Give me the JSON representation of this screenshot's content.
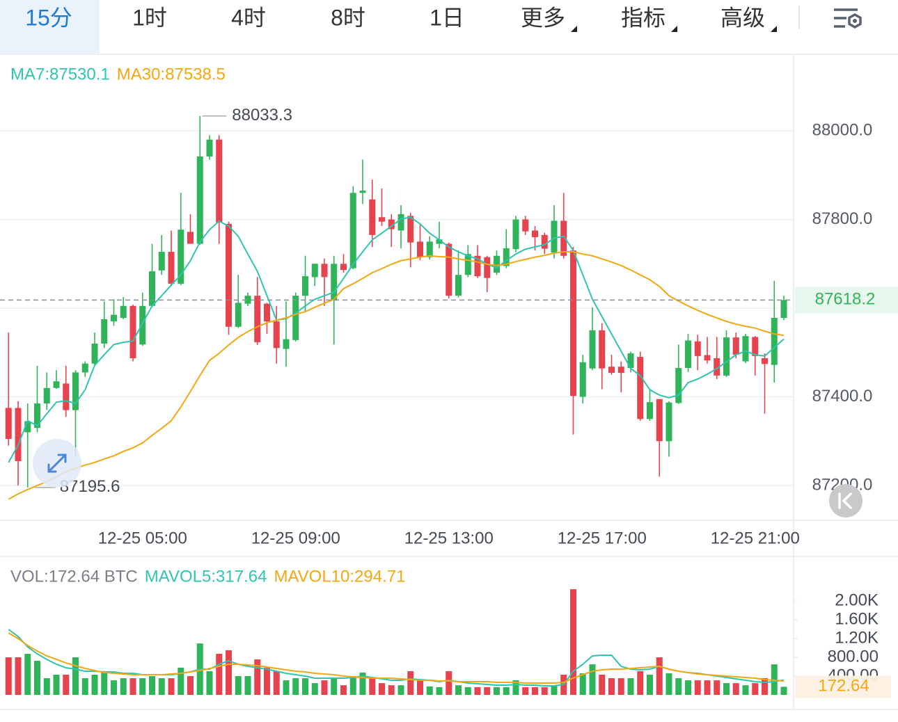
{
  "header": {
    "tabs": [
      "15分",
      "1时",
      "4时",
      "8时",
      "1日",
      "更多",
      "指标",
      "高级"
    ],
    "active": 0
  },
  "chart_data": [
    {
      "type": "candlestick",
      "categories": [
        null,
        null,
        null,
        null,
        null,
        null,
        null,
        null,
        null,
        null,
        null,
        null,
        null,
        null,
        "12-25 05:00",
        null,
        null,
        null,
        null,
        null,
        null,
        null,
        null,
        null,
        null,
        null,
        null,
        null,
        null,
        null,
        "12-25 09:00",
        null,
        null,
        null,
        null,
        null,
        null,
        null,
        null,
        null,
        null,
        null,
        null,
        null,
        null,
        null,
        "12-25 13:00",
        null,
        null,
        null,
        null,
        null,
        null,
        null,
        null,
        null,
        null,
        null,
        null,
        null,
        null,
        null,
        "12-25 17:00",
        null,
        null,
        null,
        null,
        null,
        null,
        null,
        null,
        null,
        null,
        null,
        null,
        null,
        null,
        null,
        "12-25 21:00",
        null,
        null,
        null
      ],
      "open": [
        87375,
        87375,
        87320,
        87330,
        87385,
        87420,
        87430,
        87370,
        87455,
        87475,
        87520,
        87570,
        87578,
        87605,
        87518,
        87605,
        87685,
        87727,
        87655,
        87772,
        87745,
        87942,
        87980,
        87790,
        87558,
        87610,
        87628,
        87610,
        87570,
        87508,
        87528,
        87628,
        87670,
        87700,
        87618,
        87700,
        87690,
        87860,
        87845,
        87805,
        87800,
        87775,
        87808,
        87750,
        87715,
        87745,
        87745,
        87628,
        87675,
        87718,
        87715,
        87680,
        87695,
        87733,
        87800,
        87775,
        87765,
        87725,
        87797,
        87730,
        87400,
        87464,
        87550,
        87468,
        87468,
        87465,
        87490,
        87350,
        87395,
        87300,
        87386,
        87465,
        87525,
        87494,
        87487,
        87448,
        87534,
        87480,
        87535,
        87487,
        87472,
        87578
      ],
      "high": [
        87545,
        87390,
        87385,
        87470,
        87455,
        87460,
        87470,
        87460,
        87480,
        87545,
        87615,
        87620,
        87625,
        87608,
        87635,
        87745,
        87765,
        87775,
        87860,
        87812,
        88033.3,
        87990,
        87990,
        87795,
        87675,
        87635,
        87670,
        87612,
        87605,
        87615,
        87635,
        87718,
        87700,
        87712,
        87718,
        87722,
        87875,
        87935,
        87890,
        87870,
        87812,
        87832,
        87815,
        87790,
        87762,
        87795,
        87748,
        87730,
        87742,
        87742,
        87718,
        87730,
        87778,
        87808,
        87808,
        87785,
        87770,
        87832,
        87860,
        87738,
        87495,
        87602,
        87566,
        87495,
        87480,
        87502,
        87502,
        87418,
        87395,
        87390,
        87518,
        87542,
        87540,
        87535,
        87535,
        87550,
        87545,
        87542,
        87537,
        87498,
        87662,
        87628
      ],
      "low": [
        87290,
        87200,
        87195.6,
        87320,
        87370,
        87418,
        87355,
        87265,
        87445,
        87470,
        87510,
        87560,
        87575,
        87480,
        87515,
        87602,
        87675,
        87650,
        87652,
        87745,
        87743,
        87935,
        87745,
        87540,
        87555,
        87605,
        87517,
        87542,
        87475,
        87468,
        87525,
        87590,
        87650,
        87605,
        87518,
        87680,
        87688,
        87835,
        87738,
        87785,
        87738,
        87735,
        87692,
        87708,
        87710,
        87735,
        87622,
        87624,
        87670,
        87668,
        87636,
        87675,
        87690,
        87726,
        87765,
        87730,
        87722,
        87712,
        87712,
        87315,
        87385,
        87460,
        87417,
        87450,
        87410,
        87455,
        87346,
        87346,
        87220,
        87265,
        87384,
        87456,
        87460,
        87475,
        87440,
        87445,
        87487,
        87476,
        87448,
        87362,
        87432,
        87573
      ],
      "close": [
        87305,
        87255,
        87345,
        87385,
        87420,
        87435,
        87370,
        87455,
        87475,
        87520,
        87575,
        87585,
        87605,
        87487,
        87605,
        87683,
        87727,
        87655,
        87777,
        87745,
        87942,
        87980,
        87793,
        87558,
        87612,
        87628,
        87523,
        87570,
        87510,
        87530,
        87628,
        87672,
        87700,
        87670,
        87700,
        87686,
        87860,
        87865,
        87765,
        87795,
        87778,
        87812,
        87748,
        87715,
        87750,
        87755,
        87628,
        87675,
        87722,
        87672,
        87668,
        87718,
        87735,
        87800,
        87773,
        87760,
        87734,
        87797,
        87718,
        87402,
        87478,
        87550,
        87464,
        87454,
        87454,
        87498,
        87350,
        87388,
        87300,
        87387,
        87465,
        87527,
        87492,
        87482,
        87448,
        87534,
        87495,
        87537,
        87492,
        87474,
        87578,
        87618.2
      ],
      "up_color": "#2fb45a",
      "down_color": "#e6434e",
      "ylim": [
        87121.6,
        88172.5
      ],
      "yticks": [
        {
          "value": 88000,
          "label": "88000.0"
        },
        {
          "value": 87800,
          "label": "87800.0"
        },
        {
          "value": 87600,
          "label": "87600.0"
        },
        {
          "value": 87400,
          "label": "87400.0"
        },
        {
          "value": 87200,
          "label": "87200.0"
        }
      ],
      "grid": true,
      "series": [
        {
          "name": "MA7:87530.1",
          "color": "#2ec4b0",
          "values": [
            87252,
            87291,
            87346,
            87335,
            87362,
            87388,
            87391,
            87385,
            87416,
            87471,
            87495,
            87518,
            87523,
            87526,
            87566,
            87605,
            87628,
            87652,
            87675,
            87707,
            87749,
            87777,
            87796,
            87785,
            87762,
            87722,
            87683,
            87628,
            87573,
            87576,
            87589,
            87605,
            87620,
            87628,
            87636,
            87667,
            87699,
            87727,
            87754,
            87769,
            87785,
            87801,
            87805,
            87790,
            87769,
            87754,
            87738,
            87727,
            87718,
            87711,
            87699,
            87691,
            87707,
            87722,
            87733,
            87738,
            87743,
            87758,
            87762,
            87730,
            87675,
            87620,
            87581,
            87542,
            87503,
            87464,
            87448,
            87416,
            87404,
            87398,
            87404,
            87432,
            87440,
            87451,
            87464,
            87479,
            87495,
            87503,
            87495,
            87492,
            87511,
            87530.1
          ]
        },
        {
          "name": "MA30:87538.5",
          "color": "#f3a712",
          "values": [
            87169,
            87181,
            87191,
            87200,
            87209,
            87220,
            87231,
            87239,
            87246,
            87252,
            87260,
            87267,
            87277,
            87285,
            87296,
            87313,
            87329,
            87346,
            87377,
            87412,
            87448,
            87482,
            87498,
            87517,
            87534,
            87547,
            87558,
            87567,
            87573,
            87578,
            87586,
            87592,
            87602,
            87611,
            87620,
            87644,
            87655,
            87667,
            87680,
            87689,
            87699,
            87707,
            87711,
            87715,
            87718,
            87716,
            87715,
            87711,
            87708,
            87704,
            87699,
            87696,
            87699,
            87705,
            87710,
            87715,
            87719,
            87724,
            87727,
            87727,
            87722,
            87718,
            87711,
            87704,
            87696,
            87686,
            87675,
            87664,
            87649,
            87628,
            87616,
            87605,
            87595,
            87586,
            87578,
            87570,
            87564,
            87559,
            87555,
            87548,
            87542,
            87538.5
          ]
        }
      ]
    },
    {
      "type": "bar",
      "label": "VOL:172.64 BTC",
      "values": [
        800,
        800,
        875,
        725,
        355,
        430,
        430,
        800,
        355,
        430,
        505,
        310,
        355,
        355,
        355,
        400,
        355,
        355,
        580,
        400,
        1095,
        505,
        875,
        950,
        400,
        400,
        755,
        580,
        505,
        310,
        355,
        355,
        250,
        310,
        355,
        205,
        400,
        475,
        355,
        250,
        205,
        205,
        505,
        310,
        180,
        165,
        505,
        205,
        165,
        165,
        165,
        165,
        165,
        310,
        165,
        165,
        165,
        205,
        430,
        2250,
        460,
        650,
        430,
        355,
        355,
        355,
        505,
        430,
        800,
        460,
        355,
        310,
        310,
        310,
        310,
        250,
        250,
        205,
        250,
        355,
        650,
        172.64
      ],
      "ylim": [
        0,
        2948
      ],
      "yticks": [
        {
          "value": 2000,
          "label": "2.00K"
        },
        {
          "value": 1600,
          "label": "1.60K"
        },
        {
          "value": 1200,
          "label": "1.20K"
        },
        {
          "value": 800,
          "label": "800.00"
        },
        {
          "value": 400,
          "label": "400.00"
        }
      ],
      "series": [
        {
          "name": "MAVOL5:317.64",
          "color": "#2ec4b0",
          "values": [
            1393,
            1244,
            1022,
            874,
            756,
            652,
            578,
            548,
            504,
            504,
            489,
            489,
            459,
            459,
            430,
            430,
            430,
            430,
            459,
            489,
            548,
            548,
            652,
            726,
            652,
            607,
            578,
            548,
            504,
            459,
            430,
            400,
            356,
            356,
            356,
            356,
            370,
            400,
            370,
            341,
            311,
            311,
            341,
            326,
            311,
            281,
            311,
            281,
            252,
            237,
            222,
            207,
            207,
            222,
            207,
            207,
            193,
            193,
            222,
            504,
            652,
            830,
            844,
            844,
            607,
            548,
            533,
            548,
            607,
            548,
            504,
            474,
            459,
            430,
            400,
            370,
            341,
            311,
            281,
            267,
            281,
            317.64
          ]
        },
        {
          "name": "MAVOL10:294.71",
          "color": "#f3a712",
          "values": [
            1319,
            1200,
            1052,
            933,
            830,
            756,
            681,
            622,
            563,
            519,
            474,
            459,
            444,
            430,
            430,
            430,
            430,
            444,
            459,
            489,
            519,
            563,
            607,
            652,
            652,
            637,
            622,
            593,
            563,
            533,
            504,
            489,
            459,
            444,
            430,
            400,
            385,
            370,
            356,
            356,
            356,
            341,
            326,
            311,
            311,
            296,
            296,
            281,
            281,
            281,
            281,
            267,
            267,
            267,
            252,
            252,
            252,
            252,
            267,
            356,
            430,
            504,
            533,
            548,
            548,
            563,
            578,
            593,
            607,
            548,
            504,
            474,
            444,
            430,
            415,
            400,
            385,
            370,
            356,
            326,
            311,
            294.71
          ]
        }
      ]
    }
  ]
}
